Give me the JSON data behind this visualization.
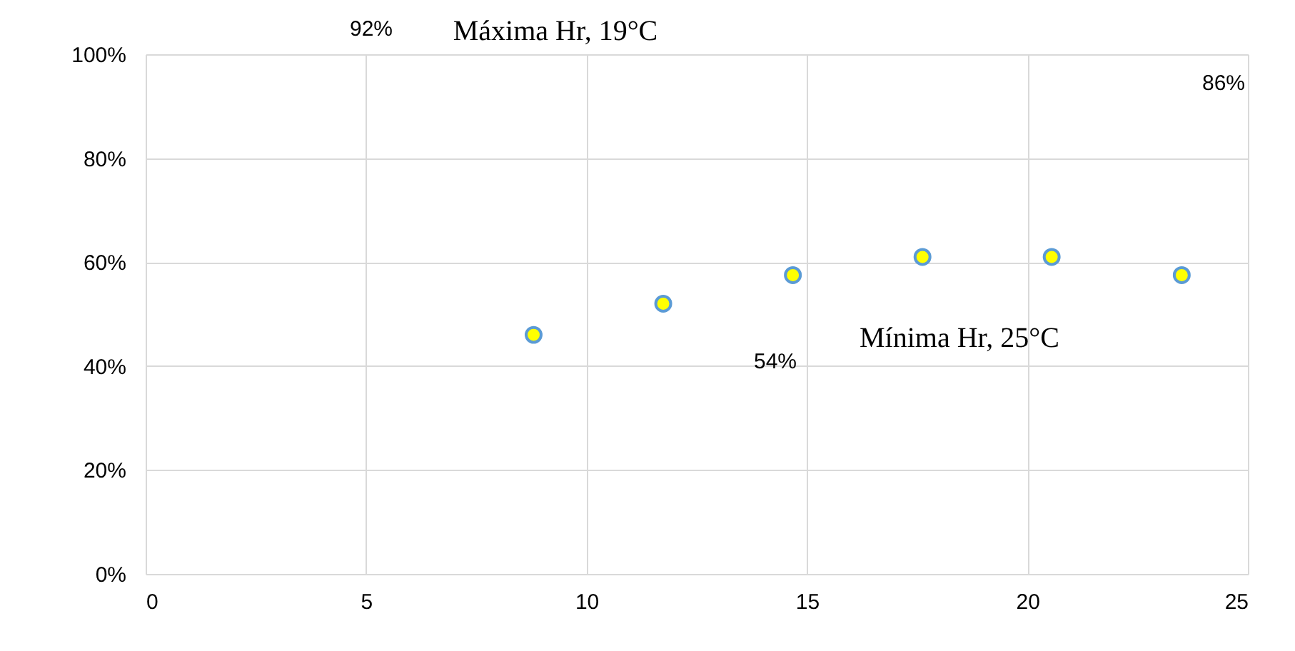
{
  "chart_data": {
    "type": "scatter",
    "annotations": [
      "92%",
      "Máxima Hr, 19°C",
      "86%",
      "54%",
      "Mínima Hr, 25°C"
    ],
    "series": [
      {
        "color": "#ffff00",
        "x": [
          8.8,
          11.74,
          14.68,
          17.62,
          20.55,
          23.5
        ],
        "values": [
          46,
          52,
          57.5,
          61,
          61,
          57.5
        ]
      }
    ],
    "xlim": [
      0,
      25
    ],
    "xticks": [
      0,
      5,
      10,
      15,
      20,
      25
    ],
    "ylim": [
      0,
      100
    ],
    "yticks": [
      {
        "value": 0,
        "label": "0%"
      },
      {
        "value": 20,
        "label": "20%"
      },
      {
        "value": 40,
        "label": "40%"
      },
      {
        "value": 60,
        "label": "60%"
      },
      {
        "value": 80,
        "label": "80%"
      },
      {
        "value": 100,
        "label": "100%"
      }
    ],
    "grid": true,
    "marker": "circle"
  }
}
